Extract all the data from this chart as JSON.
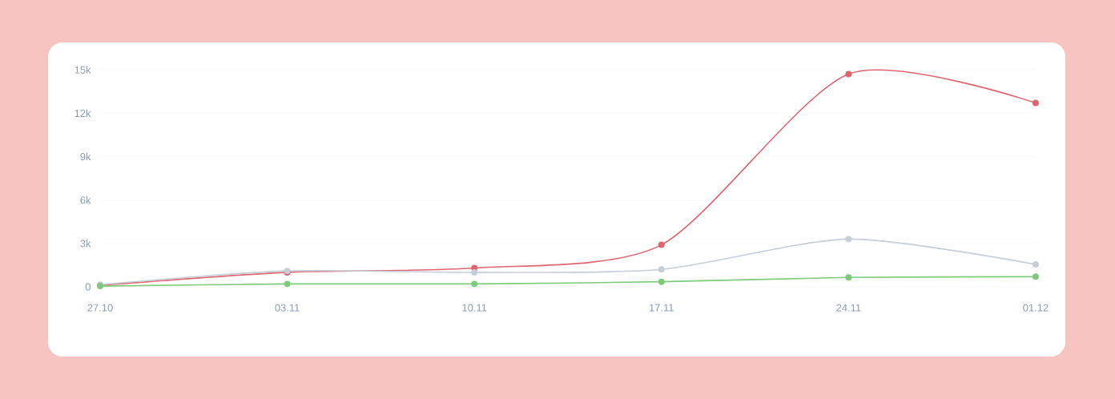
{
  "chart_data": {
    "type": "line",
    "categories": [
      "27.10",
      "03.11",
      "10.11",
      "17.11",
      "24.11",
      "01.12"
    ],
    "series": [
      {
        "color": "#e06470",
        "values": [
          100,
          1000,
          1300,
          2900,
          14700,
          12700
        ]
      },
      {
        "color": "#c5cdd8",
        "values": [
          150,
          1100,
          1000,
          1200,
          3300,
          1550
        ]
      },
      {
        "color": "#7dcb7a",
        "values": [
          50,
          200,
          200,
          350,
          650,
          700
        ]
      }
    ],
    "ylim": [
      0,
      15000
    ],
    "yticks": [
      0,
      {
        "value": 3000,
        "label": "3k"
      },
      {
        "value": 6000,
        "label": "6k"
      },
      {
        "value": 9000,
        "label": "9k"
      },
      {
        "value": 12000,
        "label": "12k"
      },
      {
        "value": 15000,
        "label": "15k"
      }
    ],
    "grid": "y",
    "marker": "circle",
    "line_style": "solid"
  }
}
